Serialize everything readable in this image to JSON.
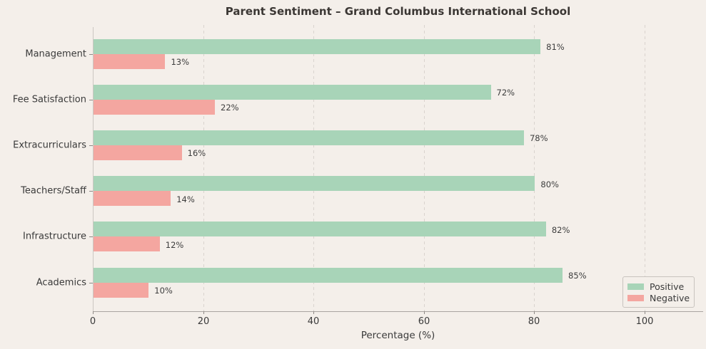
{
  "title": "Parent Sentiment – Grand Columbus International School",
  "chart_data": {
    "type": "bar",
    "orientation": "horizontal",
    "title": "Parent Sentiment – Grand Columbus International School",
    "categories": [
      "Management",
      "Fee Satisfaction",
      "Extracurriculars",
      "Teachers/Staff",
      "Infrastructure",
      "Academics"
    ],
    "series": [
      {
        "name": "Positive",
        "color": "#a8d4b8",
        "values": [
          81,
          72,
          78,
          80,
          82,
          85
        ]
      },
      {
        "name": "Negative",
        "color": "#f4a6a0",
        "values": [
          13,
          22,
          16,
          14,
          12,
          10
        ]
      }
    ],
    "value_label_format": "{v}%",
    "xlabel": "Percentage (%)",
    "ylabel": "",
    "xlim": [
      0,
      110
    ],
    "xticks": [
      0,
      20,
      40,
      60,
      80,
      100
    ],
    "grid": "vertical-dashed",
    "legend_position": "lower right"
  },
  "colors": {
    "background": "#f4efea",
    "grid": "#d9d3ce",
    "axis": "#a9a4a0",
    "text": "#3a3a3a",
    "positive": "#a8d4b8",
    "negative": "#f4a6a0"
  }
}
